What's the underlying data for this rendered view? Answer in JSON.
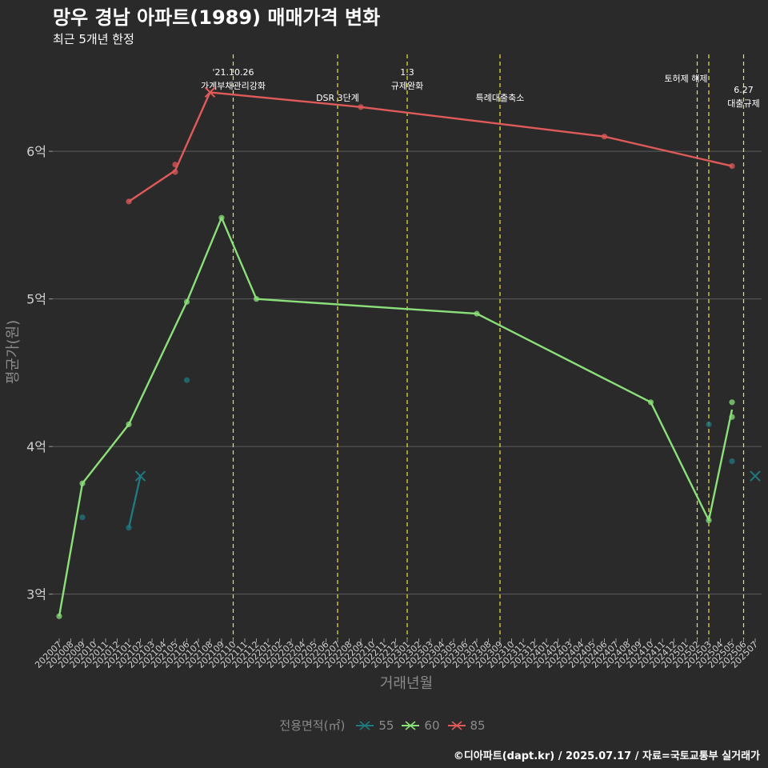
{
  "chart_data": {
    "type": "line",
    "title": "망우 경남 아파트(1989) 매매가격 변화",
    "subtitle": "최근 5개년 한정",
    "xlabel": "거래년월",
    "ylabel": "평균가(원)",
    "ylim": [
      2.7,
      6.7
    ],
    "yticks": [
      {
        "value": 3,
        "label": "3억"
      },
      {
        "value": 4,
        "label": "4억"
      },
      {
        "value": 5,
        "label": "5억"
      },
      {
        "value": 6,
        "label": "6억"
      }
    ],
    "categories": [
      "202007",
      "202008",
      "202009",
      "202010",
      "202011",
      "202012",
      "202101",
      "202102",
      "202103",
      "202104",
      "202105",
      "202106",
      "202107",
      "202108",
      "202109",
      "202110",
      "202111",
      "202112",
      "202201",
      "202202",
      "202203",
      "202204",
      "202205",
      "202206",
      "202207",
      "202208",
      "202209",
      "202210",
      "202211",
      "202212",
      "202301",
      "202302",
      "202303",
      "202304",
      "202305",
      "202306",
      "202307",
      "202308",
      "202309",
      "202310",
      "202311",
      "202312",
      "202401",
      "202402",
      "202403",
      "202404",
      "202405",
      "202406",
      "202407",
      "202408",
      "202409",
      "202410",
      "202411",
      "202412",
      "202501",
      "202502",
      "202503",
      "202504",
      "202505",
      "202506",
      "202507"
    ],
    "legend_title": "전용면적(㎡)",
    "series": [
      {
        "name": "55",
        "color": "#1f7a80",
        "line": [
          [
            "202101",
            3.45
          ],
          [
            "202102",
            3.8
          ]
        ],
        "points": [
          [
            "202009",
            3.52
          ],
          [
            "202101",
            3.45
          ],
          [
            "202106",
            4.45
          ],
          [
            "202503",
            4.15
          ],
          [
            "202505",
            3.9
          ]
        ],
        "cross": [
          [
            "202102",
            3.8
          ],
          [
            "202507",
            3.8
          ]
        ]
      },
      {
        "name": "60",
        "color": "#8be07a",
        "line": [
          [
            "202007",
            2.85
          ],
          [
            "202009",
            3.75
          ],
          [
            "202101",
            4.15
          ],
          [
            "202106",
            4.98
          ],
          [
            "202109",
            5.55
          ],
          [
            "202112",
            5.0
          ],
          [
            "202307",
            4.9
          ],
          [
            "202410",
            4.3
          ],
          [
            "202503",
            3.5
          ],
          [
            "202505",
            4.25
          ]
        ],
        "points": [
          [
            "202007",
            2.85
          ],
          [
            "202009",
            3.75
          ],
          [
            "202101",
            4.15
          ],
          [
            "202106",
            4.98
          ],
          [
            "202109",
            5.55
          ],
          [
            "202112",
            5.0
          ],
          [
            "202307",
            4.9
          ],
          [
            "202410",
            4.3
          ],
          [
            "202503",
            3.5
          ],
          [
            "202505",
            4.3
          ],
          [
            "202505",
            4.2
          ]
        ],
        "cross": []
      },
      {
        "name": "85",
        "color": "#e05a5a",
        "line": [
          [
            "202101",
            5.66
          ],
          [
            "202105",
            5.87
          ],
          [
            "202108",
            6.4
          ],
          [
            "202209",
            6.3
          ],
          [
            "202406",
            6.1
          ],
          [
            "202505",
            5.9
          ]
        ],
        "points": [
          [
            "202101",
            5.66
          ],
          [
            "202105",
            5.91
          ],
          [
            "202105",
            5.86
          ],
          [
            "202209",
            6.3
          ],
          [
            "202406",
            6.1
          ],
          [
            "202505",
            5.9
          ]
        ],
        "cross": [
          [
            "202108",
            6.4
          ]
        ]
      }
    ],
    "events": [
      {
        "month": "202110",
        "lines": [
          "'21.10.26",
          "가계부채관리강화"
        ],
        "level": "top"
      },
      {
        "month": "202207",
        "lines": [
          "DSR 3단계"
        ],
        "level": "low"
      },
      {
        "month": "202301",
        "lines": [
          "1.3",
          "규제완화"
        ],
        "level": "top"
      },
      {
        "month": "202309",
        "lines": [
          "특례대출축소"
        ],
        "level": "low"
      },
      {
        "month": "202502",
        "lines": [
          "토허제 해제"
        ],
        "level": "mid"
      },
      {
        "month": "202503",
        "lines": [],
        "level": "mid"
      },
      {
        "month": "202506",
        "lines": [
          "6.27",
          "대출규제"
        ],
        "level": "mid2"
      }
    ]
  },
  "caption": "©디아파트(dapt.kr) / 2025.07.17 / 자료=국토교통부 실거래가"
}
